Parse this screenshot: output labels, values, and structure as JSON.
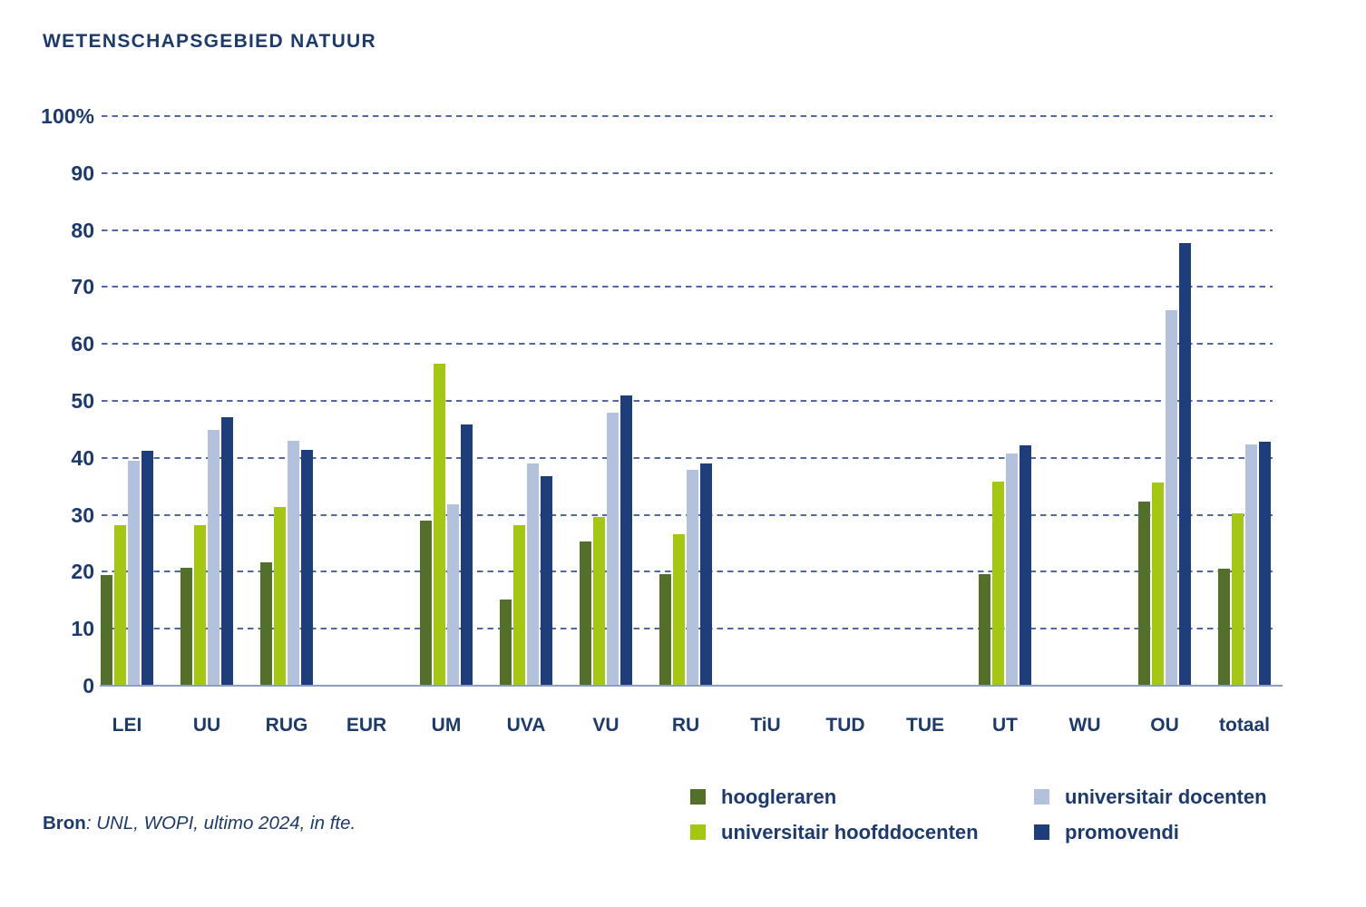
{
  "title": "WETENSCHAPSGEBIED NATUUR",
  "source": {
    "label": "Bron",
    "rest": ": UNL, WOPI, ultimo 2024, in fte."
  },
  "colors": {
    "text": "#1d3a6d",
    "gridline": "#5069a6",
    "baseline": "#8b9cc6"
  },
  "chart_data": {
    "type": "bar",
    "title": "WETENSCHAPSGEBIED NATUUR",
    "categories": [
      "LEI",
      "UU",
      "RUG",
      "EUR",
      "UM",
      "UVA",
      "VU",
      "RU",
      "TiU",
      "TUD",
      "TUE",
      "UT",
      "WU",
      "OU",
      "totaal"
    ],
    "series": [
      {
        "name": "hoogleraren",
        "color": "#53702a",
        "values": [
          19.2,
          20.6,
          21.5,
          null,
          28.8,
          15.0,
          25.2,
          19.5,
          null,
          null,
          null,
          19.5,
          null,
          32.2,
          20.4
        ]
      },
      {
        "name": "universitair hoofddocenten",
        "color": "#a4c712",
        "values": [
          28.0,
          28.0,
          31.2,
          null,
          56.4,
          28.0,
          29.5,
          26.5,
          null,
          null,
          null,
          35.7,
          null,
          35.5,
          30.1
        ]
      },
      {
        "name": "universitair docenten",
        "color": "#b2c2dc",
        "values": [
          39.4,
          44.7,
          42.8,
          null,
          31.7,
          38.9,
          47.8,
          37.7,
          null,
          null,
          null,
          40.6,
          null,
          65.7,
          42.2
        ]
      },
      {
        "name": "promovendi",
        "color": "#1e3d7b",
        "values": [
          41.1,
          46.9,
          41.2,
          null,
          45.7,
          36.6,
          50.8,
          38.9,
          null,
          null,
          null,
          42.1,
          null,
          77.6,
          42.7
        ]
      }
    ],
    "ylabel_ticks": [
      "100%",
      "90",
      "80",
      "70",
      "60",
      "50",
      "40",
      "30",
      "20",
      "10",
      "0"
    ],
    "ylim": [
      0,
      100
    ],
    "grid": "horizontal-dashed",
    "legend_position": "bottom-right",
    "legend_order_row_major": [
      0,
      2,
      1,
      3
    ]
  }
}
